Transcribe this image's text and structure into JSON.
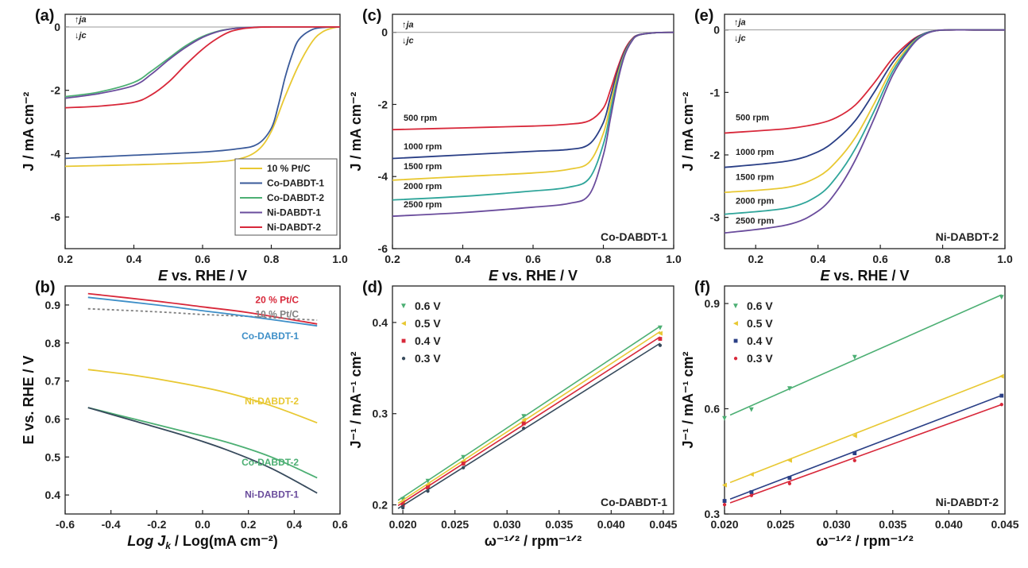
{
  "colors": {
    "yellow": "#e8c832",
    "blue": "#3a5a9a",
    "green": "#4caf73",
    "purple": "#6a4c9c",
    "red": "#d8283a",
    "darkblue": "#2a3f86",
    "gray": "#808080",
    "lightblue": "#3e8fc8",
    "darkslate": "#374a5c",
    "teal": "#2fa59a"
  },
  "chart_data": [
    {
      "id": "a",
      "panel_label": "(a)",
      "type": "line",
      "xlabel_pre": "E",
      "xlabel_post": " vs. RHE / V",
      "ylabel": "J / mA cm⁻²",
      "xlim": [
        0.2,
        1.0
      ],
      "ylim": [
        -7,
        0.4
      ],
      "xticks": [
        "0.2",
        "0.4",
        "0.6",
        "0.8",
        "1.0"
      ],
      "yticks": [
        "0",
        "-2",
        "-4",
        "-6"
      ],
      "ja_label": "↑ja",
      "jc_label": "↓jc",
      "series": [
        {
          "name": "10 % Pt/C",
          "color": "yellow",
          "x": [
            0.2,
            0.4,
            0.6,
            0.7,
            0.76,
            0.8,
            0.84,
            0.88,
            0.92,
            0.95,
            0.98,
            1.0
          ],
          "y": [
            -4.4,
            -4.35,
            -4.28,
            -4.18,
            -3.9,
            -3.3,
            -2.2,
            -1.2,
            -0.45,
            -0.15,
            -0.03,
            0
          ]
        },
        {
          "name": "Co-DABDT-1",
          "color": "blue",
          "x": [
            0.2,
            0.4,
            0.6,
            0.7,
            0.76,
            0.8,
            0.82,
            0.84,
            0.86,
            0.88,
            0.92,
            0.96,
            1.0
          ],
          "y": [
            -4.15,
            -4.05,
            -3.95,
            -3.85,
            -3.7,
            -3.2,
            -2.5,
            -1.6,
            -0.9,
            -0.4,
            -0.08,
            -0.01,
            0
          ]
        },
        {
          "name": "Co-DABDT-2",
          "color": "green",
          "x": [
            0.2,
            0.3,
            0.4,
            0.45,
            0.5,
            0.55,
            0.6,
            0.65,
            0.7,
            0.75,
            0.8,
            0.9,
            1.0
          ],
          "y": [
            -2.2,
            -2.05,
            -1.75,
            -1.4,
            -1.0,
            -0.6,
            -0.3,
            -0.12,
            -0.04,
            -0.01,
            0,
            0,
            0
          ]
        },
        {
          "name": "Ni-DABDT-1",
          "color": "purple",
          "x": [
            0.2,
            0.3,
            0.4,
            0.45,
            0.5,
            0.55,
            0.6,
            0.65,
            0.7,
            0.75,
            0.8,
            0.9,
            1.0
          ],
          "y": [
            -2.25,
            -2.1,
            -1.85,
            -1.5,
            -1.05,
            -0.65,
            -0.33,
            -0.13,
            -0.04,
            -0.01,
            0,
            0,
            0
          ]
        },
        {
          "name": "Ni-DABDT-2",
          "color": "red",
          "x": [
            0.2,
            0.3,
            0.4,
            0.45,
            0.5,
            0.55,
            0.6,
            0.64,
            0.68,
            0.72,
            0.76,
            0.8,
            0.9,
            1.0
          ],
          "y": [
            -2.55,
            -2.5,
            -2.38,
            -2.15,
            -1.75,
            -1.2,
            -0.7,
            -0.38,
            -0.15,
            -0.05,
            -0.01,
            0,
            0,
            0
          ]
        }
      ]
    },
    {
      "id": "b",
      "panel_label": "(b)",
      "type": "line",
      "xlabel_pre": "Log J",
      "xlabel_sub": "k",
      "xlabel_post": " / Log(mA cm⁻²)",
      "ylabel": "E vs. RHE / V",
      "xlim": [
        -0.6,
        0.6
      ],
      "ylim": [
        0.35,
        0.95
      ],
      "xticks": [
        "-0.6",
        "-0.4",
        "-0.2",
        "0.0",
        "0.2",
        "0.4",
        "0.6"
      ],
      "yticks": [
        "0.4",
        "0.5",
        "0.6",
        "0.7",
        "0.8",
        "0.9"
      ],
      "series": [
        {
          "name": "20 % Pt/C",
          "color": "red",
          "x": [
            -0.5,
            -0.2,
            0.0,
            0.2,
            0.5
          ],
          "y": [
            0.93,
            0.91,
            0.895,
            0.88,
            0.85
          ]
        },
        {
          "name": "10 % Pt/C",
          "color": "gray",
          "dashed": true,
          "x": [
            -0.5,
            -0.2,
            0.0,
            0.2,
            0.5
          ],
          "y": [
            0.89,
            0.882,
            0.875,
            0.87,
            0.86
          ]
        },
        {
          "name": "Co-DABDT-1",
          "color": "lightblue",
          "x": [
            -0.5,
            -0.2,
            0.0,
            0.2,
            0.5
          ],
          "y": [
            0.92,
            0.9,
            0.885,
            0.87,
            0.845
          ]
        },
        {
          "name": "Ni-DABDT-2",
          "color": "yellow",
          "x": [
            -0.5,
            -0.3,
            -0.1,
            0.1,
            0.3,
            0.5
          ],
          "y": [
            0.73,
            0.715,
            0.695,
            0.67,
            0.635,
            0.59
          ]
        },
        {
          "name": "Co-DABDT-2",
          "color": "green",
          "x": [
            -0.5,
            -0.3,
            -0.1,
            0.1,
            0.3,
            0.5
          ],
          "y": [
            0.63,
            0.6,
            0.57,
            0.54,
            0.5,
            0.445
          ]
        },
        {
          "name": "Ni-DABDT-1",
          "color": "darkslate",
          "x": [
            -0.5,
            -0.3,
            -0.1,
            0.1,
            0.3,
            0.5
          ],
          "y": [
            0.63,
            0.595,
            0.56,
            0.52,
            0.47,
            0.405
          ]
        }
      ],
      "annotations": [
        {
          "text": "20 % Pt/C",
          "color": "red",
          "x": 0.42,
          "y": 0.905
        },
        {
          "text": "10 % Pt/C",
          "color": "gray",
          "x": 0.42,
          "y": 0.867
        },
        {
          "text": "Co-DABDT-1",
          "color": "lightblue",
          "x": 0.42,
          "y": 0.81
        },
        {
          "text": "Ni-DABDT-2",
          "color": "yellow",
          "x": 0.42,
          "y": 0.638
        },
        {
          "text": "Co-DABDT-2",
          "color": "green",
          "x": 0.42,
          "y": 0.478
        },
        {
          "text": "Ni-DABDT-1",
          "color": "purple",
          "x": 0.42,
          "y": 0.393
        }
      ]
    },
    {
      "id": "c",
      "panel_label": "(c)",
      "type": "line",
      "xlabel_pre": "E",
      "xlabel_post": " vs. RHE / V",
      "ylabel": "J / mA cm⁻²",
      "xlim": [
        0.2,
        1.0
      ],
      "ylim": [
        -6,
        0.5
      ],
      "xticks": [
        "0.2",
        "0.4",
        "0.6",
        "0.8",
        "1.0"
      ],
      "yticks": [
        "0",
        "-2",
        "-4",
        "-6"
      ],
      "ja_label": "↑ja",
      "jc_label": "↓jc",
      "sample": "Co-DABDT-1",
      "series": [
        {
          "name": "500 rpm",
          "color": "red",
          "x": [
            0.2,
            0.4,
            0.6,
            0.7,
            0.76,
            0.8,
            0.82,
            0.84,
            0.86,
            0.88,
            0.9,
            0.95,
            1.0
          ],
          "y": [
            -2.7,
            -2.65,
            -2.6,
            -2.55,
            -2.45,
            -2.1,
            -1.6,
            -1.0,
            -0.5,
            -0.2,
            -0.07,
            -0.01,
            0
          ]
        },
        {
          "name": "1000 rpm",
          "color": "darkblue",
          "x": [
            0.2,
            0.4,
            0.6,
            0.7,
            0.76,
            0.8,
            0.82,
            0.84,
            0.86,
            0.88,
            0.9,
            0.95,
            1.0
          ],
          "y": [
            -3.5,
            -3.4,
            -3.3,
            -3.25,
            -3.1,
            -2.5,
            -1.8,
            -1.1,
            -0.55,
            -0.22,
            -0.07,
            -0.01,
            0
          ]
        },
        {
          "name": "1500 rpm",
          "color": "yellow",
          "x": [
            0.2,
            0.4,
            0.6,
            0.7,
            0.76,
            0.8,
            0.82,
            0.84,
            0.86,
            0.88,
            0.9,
            0.95,
            1.0
          ],
          "y": [
            -4.1,
            -4.0,
            -3.9,
            -3.8,
            -3.6,
            -2.8,
            -2.0,
            -1.2,
            -0.6,
            -0.24,
            -0.08,
            -0.01,
            0
          ]
        },
        {
          "name": "2000 rpm",
          "color": "teal",
          "x": [
            0.2,
            0.4,
            0.6,
            0.7,
            0.76,
            0.8,
            0.82,
            0.84,
            0.86,
            0.88,
            0.9,
            0.95,
            1.0
          ],
          "y": [
            -4.65,
            -4.55,
            -4.4,
            -4.3,
            -4.05,
            -3.1,
            -2.2,
            -1.3,
            -0.63,
            -0.25,
            -0.08,
            -0.01,
            0
          ]
        },
        {
          "name": "2500 rpm",
          "color": "purple",
          "x": [
            0.2,
            0.4,
            0.6,
            0.7,
            0.76,
            0.8,
            0.82,
            0.84,
            0.86,
            0.88,
            0.9,
            0.95,
            1.0
          ],
          "y": [
            -5.1,
            -5.0,
            -4.85,
            -4.75,
            -4.5,
            -3.4,
            -2.4,
            -1.4,
            -0.66,
            -0.26,
            -0.08,
            -0.01,
            0
          ]
        }
      ],
      "label_y": [
        -2.45,
        -3.25,
        -3.8,
        -4.35,
        -4.85
      ]
    },
    {
      "id": "d",
      "panel_label": "(d)",
      "type": "scatter",
      "xlabel": "ω⁻¹ᐟ² / rpm⁻¹ᐟ²",
      "ylabel": "J⁻¹ / mA⁻¹ cm²",
      "xlim": [
        0.019,
        0.046
      ],
      "ylim": [
        0.19,
        0.44
      ],
      "xticks": [
        "0.020",
        "0.025",
        "0.030",
        "0.035",
        "0.040",
        "0.045"
      ],
      "yticks": [
        "0.2",
        "0.3",
        "0.4"
      ],
      "sample": "Co-DABDT-1",
      "x": [
        0.02,
        0.0224,
        0.0258,
        0.0316,
        0.0447
      ],
      "series": [
        {
          "name": "0.6 V",
          "color": "green",
          "marker": "▼",
          "values": [
            0.207,
            0.227,
            0.253,
            0.298,
            0.395
          ]
        },
        {
          "name": "0.5 V",
          "color": "yellow",
          "marker": "◄",
          "values": [
            0.204,
            0.223,
            0.249,
            0.294,
            0.389
          ]
        },
        {
          "name": "0.4 V",
          "color": "red",
          "marker": "■",
          "values": [
            0.201,
            0.22,
            0.246,
            0.29,
            0.383
          ]
        },
        {
          "name": "0.3 V",
          "color": "darkslate",
          "marker": "●",
          "values": [
            0.198,
            0.216,
            0.242,
            0.285,
            0.376
          ]
        }
      ]
    },
    {
      "id": "e",
      "panel_label": "(e)",
      "type": "line",
      "xlabel_pre": "E",
      "xlabel_post": " vs. RHE / V",
      "ylabel": "J / mA cm⁻²",
      "xlim": [
        0.1,
        1.0
      ],
      "ylim": [
        -3.5,
        0.25
      ],
      "xticks": [
        "0.2",
        "0.4",
        "0.6",
        "0.8",
        "1.0"
      ],
      "yticks": [
        "0",
        "-1",
        "-2",
        "-3"
      ],
      "ja_label": "↑ja",
      "jc_label": "↓jc",
      "sample": "Ni-DABDT-2",
      "series": [
        {
          "name": "500 rpm",
          "color": "red",
          "x": [
            0.1,
            0.3,
            0.4,
            0.46,
            0.52,
            0.58,
            0.64,
            0.7,
            0.74,
            0.78,
            0.82,
            0.9,
            1.0
          ],
          "y": [
            -1.65,
            -1.58,
            -1.5,
            -1.4,
            -1.2,
            -0.85,
            -0.45,
            -0.17,
            -0.06,
            -0.01,
            0,
            0,
            0
          ]
        },
        {
          "name": "1000 rpm",
          "color": "darkblue",
          "x": [
            0.1,
            0.3,
            0.4,
            0.46,
            0.52,
            0.58,
            0.64,
            0.7,
            0.74,
            0.78,
            0.82,
            0.9,
            1.0
          ],
          "y": [
            -2.2,
            -2.1,
            -1.95,
            -1.75,
            -1.45,
            -1.0,
            -0.52,
            -0.19,
            -0.06,
            -0.01,
            0,
            0,
            0
          ]
        },
        {
          "name": "1500 rpm",
          "color": "yellow",
          "x": [
            0.1,
            0.3,
            0.4,
            0.46,
            0.52,
            0.58,
            0.64,
            0.7,
            0.74,
            0.78,
            0.82,
            0.9,
            1.0
          ],
          "y": [
            -2.6,
            -2.52,
            -2.35,
            -2.1,
            -1.72,
            -1.18,
            -0.6,
            -0.22,
            -0.07,
            -0.01,
            0,
            0,
            0
          ]
        },
        {
          "name": "2000 rpm",
          "color": "teal",
          "x": [
            0.1,
            0.3,
            0.4,
            0.46,
            0.52,
            0.58,
            0.64,
            0.7,
            0.74,
            0.78,
            0.82,
            0.9,
            1.0
          ],
          "y": [
            -2.95,
            -2.85,
            -2.65,
            -2.35,
            -1.9,
            -1.3,
            -0.66,
            -0.24,
            -0.07,
            -0.01,
            0,
            0,
            0
          ]
        },
        {
          "name": "2500 rpm",
          "color": "purple",
          "x": [
            0.1,
            0.3,
            0.4,
            0.46,
            0.52,
            0.58,
            0.64,
            0.7,
            0.74,
            0.78,
            0.82,
            0.9,
            1.0
          ],
          "y": [
            -3.25,
            -3.12,
            -2.9,
            -2.58,
            -2.08,
            -1.42,
            -0.72,
            -0.26,
            -0.08,
            -0.01,
            0,
            0,
            0
          ]
        }
      ],
      "label_y": [
        -1.45,
        -2.0,
        -2.4,
        -2.78,
        -3.1
      ]
    },
    {
      "id": "f",
      "panel_label": "(f)",
      "type": "scatter",
      "xlabel": "ω⁻¹ᐟ² / rpm⁻¹ᐟ²",
      "ylabel": "J⁻¹ / mA⁻¹ cm²",
      "xlim": [
        0.02,
        0.045
      ],
      "ylim": [
        0.3,
        0.95
      ],
      "xticks": [
        "0.020",
        "0.025",
        "0.030",
        "0.035",
        "0.040",
        "0.045"
      ],
      "yticks": [
        "0.3",
        "0.6",
        "0.9"
      ],
      "sample": "Ni-DABDT-2",
      "x": [
        0.02,
        0.0224,
        0.0258,
        0.0316,
        0.0447
      ],
      "series": [
        {
          "name": "0.6 V",
          "color": "green",
          "marker": "▼",
          "values": [
            0.575,
            0.6,
            0.66,
            0.75,
            0.92
          ]
        },
        {
          "name": "0.5 V",
          "color": "yellow",
          "marker": "◄",
          "values": [
            0.385,
            0.415,
            0.455,
            0.525,
            0.695
          ]
        },
        {
          "name": "0.4 V",
          "color": "darkblue",
          "marker": "■",
          "values": [
            0.34,
            0.365,
            0.405,
            0.475,
            0.64
          ]
        },
        {
          "name": "0.3 V",
          "color": "red",
          "marker": "●",
          "values": [
            0.33,
            0.355,
            0.39,
            0.455,
            0.615
          ]
        }
      ]
    }
  ]
}
